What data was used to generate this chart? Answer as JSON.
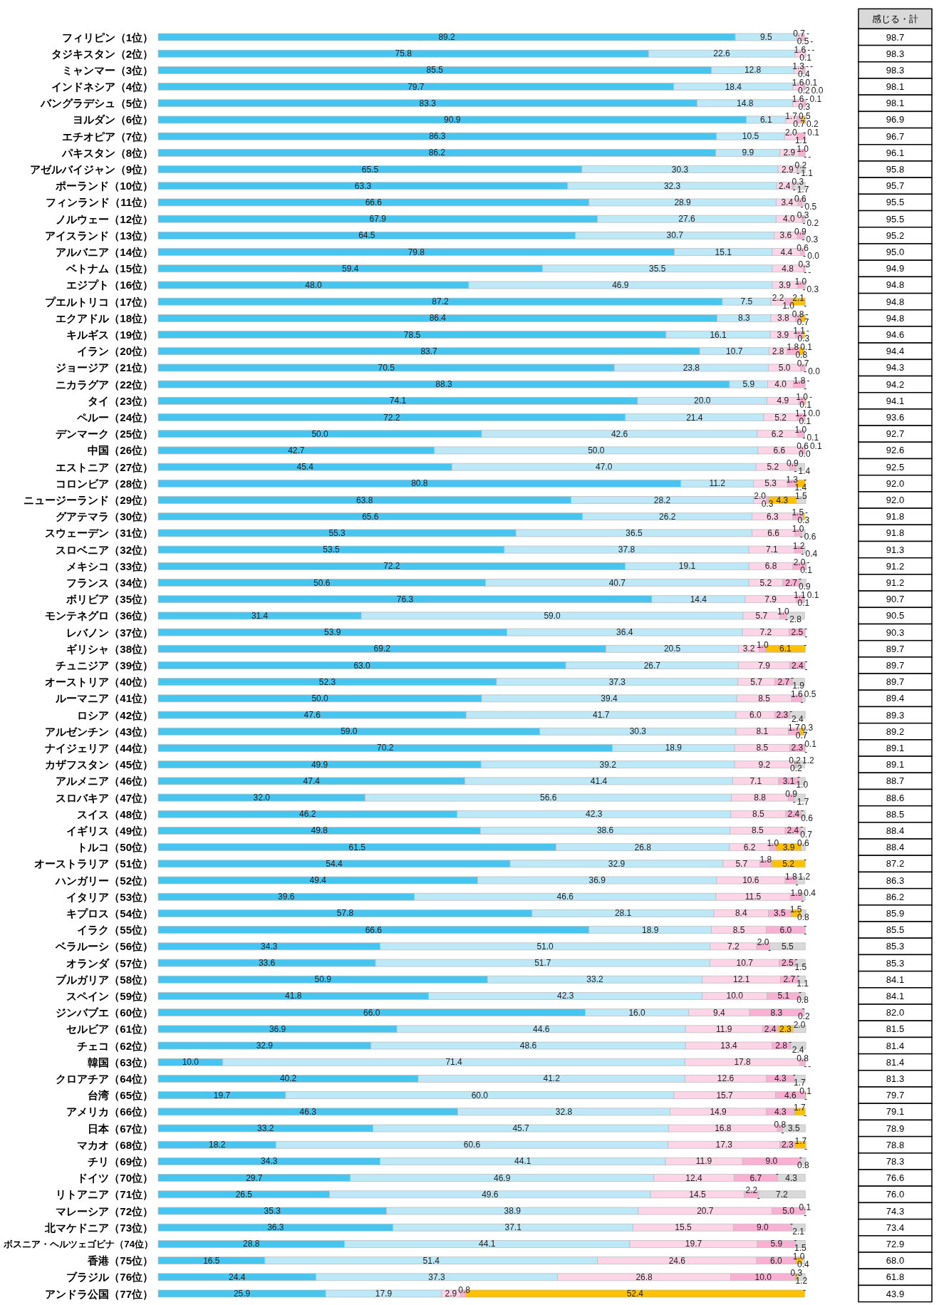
{
  "chart_data": [
    {
      "type": "bar",
      "orientation": "horizontal",
      "stacked": true,
      "categories": [
        "フィリピン（1位）",
        "タジキスタン（2位）",
        "ミャンマー（3位）",
        "インドネシア（4位）",
        "バングラデシュ（5位）",
        "ヨルダン（6位）",
        "エチオピア（7位）",
        "パキスタン（8位）",
        "アゼルバイジャン（9位）",
        "ポーランド（10位）",
        "フィンランド（11位）",
        "ノルウェー（12位）",
        "アイスランド（13位）",
        "アルバニア（14位）",
        "ベトナム（15位）",
        "エジプト（16位）",
        "プエルトリコ（17位）",
        "エクアドル（18位）",
        "キルギス（19位）",
        "イラン（20位）",
        "ジョージア（21位）",
        "ニカラグア（22位）",
        "タイ（23位）",
        "ペルー（24位）",
        "デンマーク（25位）",
        "中国（26位）",
        "エストニア（27位）",
        "コロンビア（28位）",
        "ニュージーランド（29位）",
        "グアテマラ（30位）",
        "スウェーデン（31位）",
        "スロベニア（32位）",
        "メキシコ（33位）",
        "フランス（34位）",
        "ボリビア（35位）",
        "モンテネグロ（36位）",
        "レバノン（37位）",
        "ギリシャ（38位）",
        "チュニジア（39位）",
        "オーストリア（40位）",
        "ルーマニア（41位）",
        "ロシア（42位）",
        "アルゼンチン（43位）",
        "ナイジェリア（44位）",
        "カザフスタン（45位）",
        "アルメニア（46位）",
        "スロバキア（47位）",
        "スイス（48位）",
        "イギリス（49位）",
        "トルコ（50位）",
        "オーストラリア（51位）",
        "ハンガリー（52位）",
        "イタリア（53位）",
        "キプロス（54位）",
        "イラク（55位）",
        "ベラルーシ（56位）",
        "オランダ（57位）",
        "ブルガリア（58位）",
        "スペイン（59位）",
        "ジンバブエ（60位）",
        "セルビア（61位）",
        "チェコ（62位）",
        "韓国（63位）",
        "クロアチア（64位）",
        "台湾（65位）",
        "アメリカ（66位）",
        "日本（67位）",
        "マカオ（68位）",
        "チリ（69位）",
        "ドイツ（70位）",
        "リトアニア（71位）",
        "マレーシア（72位）",
        "北マケドニア（73位）",
        "ボスニア・ヘルツェゴビナ（74位）",
        "香港（75位）",
        "ブラジル（76位）",
        "アンドラ公国（77位）"
      ],
      "series": [
        {
          "color": "#45c5f0",
          "values": [
            89.2,
            75.8,
            85.5,
            79.7,
            83.3,
            90.9,
            86.3,
            86.2,
            65.5,
            63.3,
            66.6,
            67.9,
            64.5,
            79.8,
            59.4,
            48.0,
            87.2,
            86.4,
            78.5,
            83.7,
            70.5,
            88.3,
            74.1,
            72.2,
            50.0,
            42.7,
            45.4,
            80.8,
            63.8,
            65.6,
            55.3,
            53.5,
            72.2,
            50.6,
            76.3,
            31.4,
            53.9,
            69.2,
            63.0,
            52.3,
            50.0,
            47.6,
            59.0,
            70.2,
            49.9,
            47.4,
            32.0,
            46.2,
            49.8,
            61.5,
            54.4,
            49.4,
            39.6,
            57.8,
            66.6,
            34.3,
            33.6,
            50.9,
            41.8,
            66.0,
            36.9,
            32.9,
            10.0,
            40.2,
            19.7,
            46.3,
            33.2,
            18.2,
            34.3,
            29.7,
            26.5,
            35.3,
            36.3,
            28.8,
            16.5,
            24.4,
            25.9
          ],
          "value_labels": [
            "89.2",
            "75.8",
            "85.5",
            "79.7",
            "83.3",
            "90.9",
            "86.3",
            "86.2",
            "65.5",
            "63.3",
            "66.6",
            "67.9",
            "64.5",
            "79.8",
            "59.4",
            "48.0",
            "87.2",
            "86.4",
            "78.5",
            "83.7",
            "70.5",
            "88.3",
            "74.1",
            "72.2",
            "50.0",
            "42.7",
            "45.4",
            "80.8",
            "63.8",
            "65.6",
            "55.3",
            "53.5",
            "72.2",
            "50.6",
            "76.3",
            "31.4",
            "53.9",
            "69.2",
            "63.0",
            "52.3",
            "50.0",
            "47.6",
            "59.0",
            "70.2",
            "49.9",
            "47.4",
            "32.0",
            "46.2",
            "49.8",
            "61.5",
            "54.4",
            "49.4",
            "39.6",
            "57.8",
            "66.6",
            "34.3",
            "33.6",
            "50.9",
            "41.8",
            "66.0",
            "36.9",
            "32.9",
            "10.0",
            "40.2",
            "19.7",
            "46.3",
            "33.2",
            "18.2",
            "34.3",
            "29.7",
            "26.5",
            "35.3",
            "36.3",
            "28.8",
            "16.5",
            "24.4",
            "25.9"
          ]
        },
        {
          "color": "#bde8f7",
          "values": [
            9.5,
            22.6,
            12.8,
            18.4,
            14.8,
            6.1,
            10.5,
            9.9,
            30.3,
            32.3,
            28.9,
            27.6,
            30.7,
            15.1,
            35.5,
            46.9,
            7.5,
            8.3,
            16.1,
            10.7,
            23.8,
            5.9,
            20.0,
            21.4,
            42.6,
            50.0,
            47.0,
            11.2,
            28.2,
            26.2,
            36.5,
            37.8,
            19.1,
            40.7,
            14.4,
            59.0,
            36.4,
            20.5,
            26.7,
            37.3,
            39.4,
            41.7,
            30.3,
            18.9,
            39.2,
            41.4,
            56.6,
            42.3,
            38.6,
            26.8,
            32.9,
            36.9,
            46.6,
            28.1,
            18.9,
            51.0,
            51.7,
            33.2,
            42.3,
            16.0,
            44.6,
            48.6,
            71.4,
            41.2,
            60.0,
            32.8,
            45.7,
            60.6,
            44.1,
            46.9,
            49.6,
            38.9,
            37.1,
            44.1,
            51.4,
            37.3,
            17.9
          ],
          "value_labels": [
            "9.5",
            "22.6",
            "12.8",
            "18.4",
            "14.8",
            "6.1",
            "10.5",
            "9.9",
            "30.3",
            "32.3",
            "28.9",
            "27.6",
            "30.7",
            "15.1",
            "35.5",
            "46.9",
            "7.5",
            "8.3",
            "16.1",
            "10.7",
            "23.8",
            "5.9",
            "20.0",
            "21.4",
            "42.6",
            "50.0",
            "47.0",
            "11.2",
            "28.2",
            "26.2",
            "36.5",
            "37.8",
            "19.1",
            "40.7",
            "14.4",
            "59.0",
            "36.4",
            "20.5",
            "26.7",
            "37.3",
            "39.4",
            "41.7",
            "30.3",
            "18.9",
            "39.2",
            "41.4",
            "56.6",
            "42.3",
            "38.6",
            "26.8",
            "32.9",
            "36.9",
            "46.6",
            "28.1",
            "18.9",
            "51.0",
            "51.7",
            "33.2",
            "42.3",
            "16.0",
            "44.6",
            "48.6",
            "71.4",
            "41.2",
            "60.0",
            "32.8",
            "45.7",
            "60.6",
            "44.1",
            "46.9",
            "49.6",
            "38.9",
            "37.1",
            "44.1",
            "51.4",
            "37.3",
            "17.9"
          ]
        },
        {
          "color": "#fdd5e6",
          "values": [
            0.7,
            1.6,
            1.3,
            1.6,
            1.6,
            1.7,
            2.0,
            2.9,
            2.9,
            2.4,
            3.4,
            4.0,
            3.6,
            4.4,
            4.8,
            3.9,
            2.2,
            3.8,
            3.9,
            2.8,
            5.0,
            4.0,
            4.9,
            5.2,
            6.2,
            6.6,
            5.2,
            5.3,
            2.0,
            6.3,
            6.6,
            7.1,
            6.8,
            5.2,
            7.9,
            5.7,
            7.2,
            3.2,
            7.9,
            5.7,
            8.5,
            6.0,
            8.1,
            8.5,
            9.2,
            7.1,
            8.8,
            8.5,
            8.5,
            6.2,
            5.7,
            10.6,
            11.5,
            8.4,
            8.5,
            7.2,
            10.7,
            12.1,
            10.0,
            9.4,
            11.9,
            13.4,
            17.8,
            12.6,
            15.7,
            14.9,
            16.8,
            17.3,
            11.9,
            12.4,
            14.5,
            20.7,
            15.5,
            19.7,
            24.6,
            26.8,
            2.9
          ],
          "value_labels": [
            "0.7",
            "1.6",
            "1.3",
            "1.6",
            "1.6",
            "1.7",
            "2.0",
            "2.9",
            "2.9",
            "2.4",
            "3.4",
            "4.0",
            "3.6",
            "4.4",
            "4.8",
            "3.9",
            "2.2",
            "3.8",
            "3.9",
            "2.8",
            "5.0",
            "4.0",
            "4.9",
            "5.2",
            "6.2",
            "6.6",
            "5.2",
            "5.3",
            "2.0",
            "6.3",
            "6.6",
            "7.1",
            "6.8",
            "5.2",
            "7.9",
            "5.7",
            "7.2",
            "3.2",
            "7.9",
            "5.7",
            "8.5",
            "6.0",
            "8.1",
            "8.5",
            "9.2",
            "7.1",
            "8.8",
            "8.5",
            "8.5",
            "6.2",
            "5.7",
            "10.6",
            "11.5",
            "8.4",
            "8.5",
            "7.2",
            "10.7",
            "12.1",
            "10.0",
            "9.4",
            "11.9",
            "13.4",
            "17.8",
            "12.6",
            "15.7",
            "14.9",
            "16.8",
            "17.3",
            "11.9",
            "12.4",
            "14.5",
            "20.7",
            "15.5",
            "19.7",
            "24.6",
            "26.8",
            "2.9"
          ]
        },
        {
          "color": "#f9b0d3",
          "values": [
            0.5,
            0.1,
            0.4,
            0.2,
            0.3,
            0.7,
            1.1,
            1.0,
            0.2,
            0.3,
            0.6,
            0.3,
            0.9,
            0.6,
            0.3,
            1.0,
            1.0,
            0.8,
            1.1,
            1.8,
            0.7,
            1.8,
            1.0,
            1.1,
            1.0,
            0.6,
            0.9,
            1.3,
            0.3,
            1.5,
            1.0,
            1.2,
            2.0,
            2.7,
            1.1,
            1.0,
            2.5,
            1.0,
            2.4,
            2.7,
            1.6,
            2.3,
            1.7,
            2.3,
            0.2,
            3.1,
            0.9,
            2.4,
            2.4,
            1.0,
            1.8,
            1.8,
            1.9,
            3.5,
            6.0,
            2.0,
            2.5,
            2.7,
            5.1,
            8.3,
            2.4,
            2.8,
            0.8,
            4.3,
            4.6,
            4.3,
            0.8,
            2.3,
            9.0,
            6.7,
            2.2,
            5.0,
            9.0,
            5.9,
            6.0,
            10.0,
            0.8
          ],
          "value_labels": [
            "0.5",
            "0.1",
            "0.4",
            "0.2",
            "0.3",
            "0.7",
            "1.1",
            "1.0",
            "0.2",
            "0.3",
            "0.6",
            "0.3",
            "0.9",
            "0.6",
            "0.3",
            "1.0",
            "1.0",
            "0.8",
            "1.1",
            "1.8",
            "0.7",
            "1.8",
            "1.0",
            "1.1",
            "1.0",
            "0.6",
            "0.9",
            "1.3",
            "0.3",
            "1.5",
            "1.0",
            "1.2",
            "2.0",
            "2.7",
            "1.1",
            "1.0",
            "2.5",
            "1.0",
            "2.4",
            "2.7",
            "1.6",
            "2.3",
            "1.7",
            "2.3",
            "0.2",
            "3.1",
            "0.9",
            "2.4",
            "2.4",
            "1.0",
            "1.8",
            "1.8",
            "1.9",
            "3.5",
            "6.0",
            "2.0",
            "2.5",
            "2.7",
            "5.1",
            "8.3",
            "2.4",
            "2.8",
            "0.8",
            "4.3",
            "4.6",
            "4.3",
            "0.8",
            "2.3",
            "9.0",
            "6.7",
            "2.2",
            "5.0",
            "9.0",
            "5.9",
            "6.0",
            "10.0",
            "0.8"
          ]
        },
        {
          "color": "#ffc000",
          "values": [
            null,
            null,
            null,
            0.1,
            null,
            0.5,
            null,
            null,
            null,
            null,
            null,
            null,
            null,
            null,
            null,
            null,
            2.1,
            0.7,
            0.3,
            0.8,
            null,
            null,
            0.1,
            0.1,
            null,
            0.0,
            null,
            1.4,
            4.3,
            0.3,
            null,
            null,
            0.1,
            null,
            0.1,
            null,
            null,
            6.1,
            null,
            null,
            null,
            null,
            0.7,
            0.1,
            0.2,
            null,
            null,
            null,
            null,
            3.9,
            5.2,
            null,
            null,
            1.5,
            null,
            null,
            null,
            null,
            null,
            null,
            2.3,
            null,
            null,
            null,
            0.1,
            1.7,
            null,
            1.7,
            null,
            null,
            null,
            0.1,
            null,
            null,
            1.0,
            0.3,
            52.4
          ],
          "value_labels": [
            "-",
            "-",
            "-",
            "0.1",
            "-",
            "0.5",
            "-",
            "-",
            "-",
            "-",
            "-",
            "-",
            "-",
            "-",
            "-",
            "-",
            "2.1",
            "0.7",
            "0.3",
            "0.8",
            "-",
            "-",
            "0.1",
            "0.1",
            "-",
            "0.0",
            "-",
            "1.4",
            "4.3",
            "0.3",
            "-",
            "-",
            "0.1",
            "-",
            "0.1",
            "-",
            "-",
            "6.1",
            "-",
            "-",
            "-",
            "-",
            "0.7",
            "0.1",
            "0.2",
            "-",
            "-",
            "-",
            "-",
            "3.9",
            "5.2",
            "-",
            "-",
            "1.5",
            "-",
            "-",
            "-",
            "-",
            "-",
            "-",
            "2.3",
            "-",
            "-",
            "-",
            "0.1",
            "1.7",
            "-",
            "1.7",
            "-",
            "-",
            "-",
            "0.1",
            "-",
            "-",
            "1.0",
            "0.3",
            "52.4"
          ]
        },
        {
          "color": "#d9d9d9",
          "values": [
            null,
            null,
            null,
            0.0,
            0.1,
            0.2,
            0.1,
            null,
            1.1,
            1.7,
            0.5,
            0.2,
            0.3,
            0.0,
            null,
            0.3,
            null,
            null,
            null,
            0.1,
            0.0,
            null,
            null,
            0.0,
            0.1,
            0.1,
            1.4,
            null,
            1.5,
            null,
            0.6,
            0.4,
            null,
            0.9,
            0.1,
            2.8,
            null,
            null,
            null,
            1.9,
            0.5,
            2.4,
            0.3,
            null,
            1.2,
            1.0,
            1.7,
            0.6,
            0.7,
            0.6,
            null,
            1.2,
            0.4,
            0.8,
            null,
            5.5,
            1.5,
            1.1,
            0.8,
            0.2,
            2.0,
            2.4,
            null,
            1.7,
            null,
            null,
            3.5,
            null,
            0.8,
            4.3,
            7.2,
            null,
            2.1,
            1.5,
            0.4,
            1.2,
            null
          ],
          "value_labels": [
            "-",
            "-",
            "-",
            "0.0",
            "0.1",
            "0.2",
            "0.1",
            "-",
            "1.1",
            "1.7",
            "0.5",
            "0.2",
            "0.3",
            "0.0",
            "-",
            "0.3",
            "-",
            "-",
            "-",
            "0.1",
            "0.0",
            "-",
            "-",
            "0.0",
            "0.1",
            "0.1",
            "1.4",
            "-",
            "1.5",
            "-",
            "0.6",
            "0.4",
            "-",
            "0.9",
            "0.1",
            "2.8",
            "-",
            "-",
            "-",
            "1.9",
            "0.5",
            "2.4",
            "0.3",
            "-",
            "1.2",
            "1.0",
            "1.7",
            "0.6",
            "0.7",
            "0.6",
            "-",
            "1.2",
            "0.4",
            "0.8",
            "-",
            "5.5",
            "1.5",
            "1.1",
            "0.8",
            "0.2",
            "2.0",
            "2.4",
            "-",
            "1.7",
            "-",
            "-",
            "3.5",
            "-",
            "0.8",
            "4.3",
            "7.2",
            "-",
            "2.1",
            "1.5",
            "0.4",
            "1.2",
            "-"
          ]
        }
      ]
    },
    {
      "type": "other",
      "title": "感じる・計",
      "annotations": [
        "98.7",
        "98.3",
        "98.3",
        "98.1",
        "98.1",
        "96.9",
        "96.7",
        "96.1",
        "95.8",
        "95.7",
        "95.5",
        "95.5",
        "95.2",
        "95.0",
        "94.9",
        "94.8",
        "94.8",
        "94.8",
        "94.6",
        "94.4",
        "94.3",
        "94.2",
        "94.1",
        "93.6",
        "92.7",
        "92.6",
        "92.5",
        "92.0",
        "92.0",
        "91.8",
        "91.8",
        "91.3",
        "91.2",
        "91.2",
        "90.7",
        "90.5",
        "90.3",
        "89.7",
        "89.7",
        "89.7",
        "89.4",
        "89.3",
        "89.2",
        "89.1",
        "89.1",
        "88.7",
        "88.6",
        "88.5",
        "88.4",
        "88.4",
        "87.2",
        "86.3",
        "86.2",
        "85.9",
        "85.5",
        "85.3",
        "85.3",
        "84.1",
        "84.1",
        "82.0",
        "81.5",
        "81.4",
        "81.4",
        "81.3",
        "79.7",
        "79.1",
        "78.9",
        "78.8",
        "78.3",
        "76.6",
        "76.0",
        "74.3",
        "73.4",
        "72.9",
        "68.0",
        "61.8",
        "43.9"
      ]
    }
  ]
}
